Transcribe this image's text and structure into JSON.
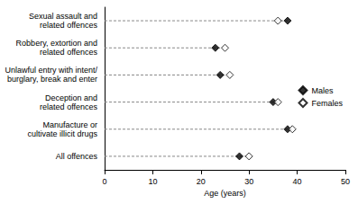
{
  "chart_data": {
    "type": "dot",
    "orientation": "horizontal",
    "x_label": "Age (years)",
    "categories": [
      "Sexual assault and\nrelated offences",
      "Robbery, extortion and\nrelated offences",
      "Unlawful entry with intent/\nburglary, break and enter",
      "Deception and\nrelated offences",
      "Manufacture or\ncultivate illicit drugs",
      "All offences"
    ],
    "series": [
      {
        "name": "Males",
        "color": "#000000",
        "marker": "diamond",
        "values": [
          38,
          23,
          24,
          35,
          38,
          28
        ]
      },
      {
        "name": "Females",
        "color": "#000000",
        "marker": "open-diamond",
        "values": [
          36,
          25,
          26,
          36,
          39,
          30
        ]
      }
    ],
    "xlim": [
      0,
      50
    ],
    "xticks": [
      0,
      10,
      20,
      30,
      40,
      50
    ],
    "legend": "right",
    "grid": false
  }
}
